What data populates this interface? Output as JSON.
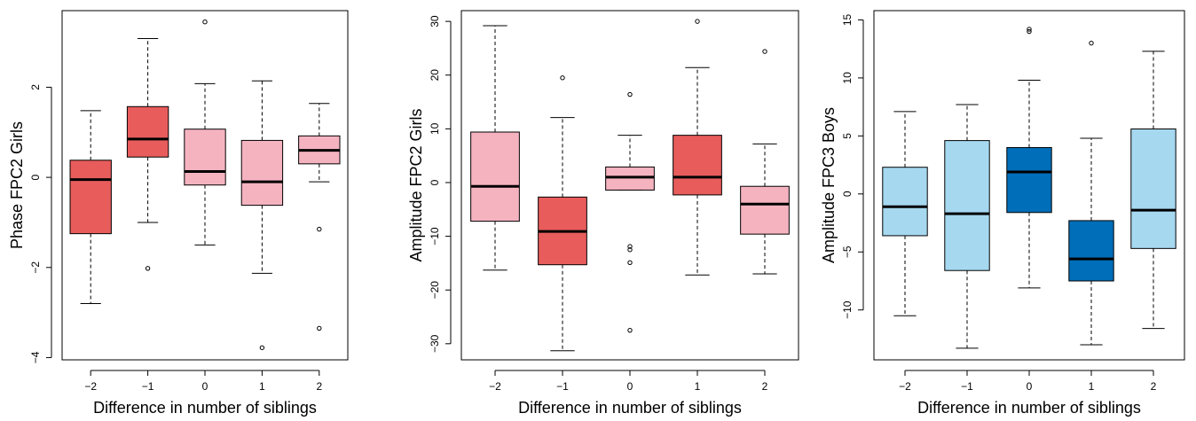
{
  "chart_data": [
    {
      "type": "box",
      "xlabel": "Difference in number of siblings",
      "ylabel": "Phase FPC2 Girls",
      "ylim": [
        -4.05,
        3.7
      ],
      "yticks": [
        -4,
        -2,
        0,
        2
      ],
      "categories": [
        "−2",
        "−1",
        "0",
        "1",
        "2"
      ],
      "colors": [
        "#e85c5c",
        "#e85c5c",
        "#f5b3c0",
        "#f5b3c0",
        "#f5b3c0"
      ],
      "boxes": [
        {
          "category": "−2",
          "whisker_low": -2.8,
          "q1": -1.25,
          "median": -0.05,
          "q3": 0.38,
          "whisker_high": 1.48,
          "outliers": []
        },
        {
          "category": "−1",
          "whisker_low": -1.0,
          "q1": 0.45,
          "median": 0.85,
          "q3": 1.57,
          "whisker_high": 3.08,
          "outliers": [
            -2.02
          ]
        },
        {
          "category": "0",
          "whisker_low": -1.5,
          "q1": -0.17,
          "median": 0.13,
          "q3": 1.07,
          "whisker_high": 2.08,
          "outliers": [
            3.45
          ]
        },
        {
          "category": "1",
          "whisker_low": -2.13,
          "q1": -0.62,
          "median": -0.1,
          "q3": 0.82,
          "whisker_high": 2.14,
          "outliers": [
            -3.78
          ]
        },
        {
          "category": "2",
          "whisker_low": -0.1,
          "q1": 0.3,
          "median": 0.6,
          "q3": 0.92,
          "whisker_high": 1.64,
          "outliers": [
            -1.15,
            -3.35
          ]
        }
      ]
    },
    {
      "type": "box",
      "xlabel": "Difference in number of siblings",
      "ylabel": "Amplitude FPC2 Girls",
      "ylim": [
        -33,
        32
      ],
      "yticks": [
        -30,
        -20,
        -10,
        0,
        10,
        20,
        30
      ],
      "categories": [
        "−2",
        "−1",
        "0",
        "1",
        "2"
      ],
      "colors": [
        "#f5b3c0",
        "#e85c5c",
        "#f5b3c0",
        "#e85c5c",
        "#f5b3c0"
      ],
      "boxes": [
        {
          "category": "−2",
          "whisker_low": -16.3,
          "q1": -7.2,
          "median": -0.7,
          "q3": 9.4,
          "whisker_high": 29.2,
          "outliers": []
        },
        {
          "category": "−1",
          "whisker_low": -31.3,
          "q1": -15.3,
          "median": -9.1,
          "q3": -2.7,
          "whisker_high": 12.1,
          "outliers": [
            19.5
          ]
        },
        {
          "category": "0",
          "whisker_low": -1.4,
          "q1": -1.4,
          "median": 1.0,
          "q3": 2.9,
          "whisker_high": 8.8,
          "outliers": [
            16.4,
            -11.9,
            -12.5,
            -14.9,
            -27.5
          ]
        },
        {
          "category": "1",
          "whisker_low": -17.2,
          "q1": -2.3,
          "median": 1.0,
          "q3": 8.8,
          "whisker_high": 21.4,
          "outliers": [
            30.0
          ]
        },
        {
          "category": "2",
          "whisker_low": -17.0,
          "q1": -9.6,
          "median": -4.0,
          "q3": -0.7,
          "whisker_high": 7.2,
          "outliers": [
            24.4
          ]
        }
      ]
    },
    {
      "type": "box",
      "xlabel": "Difference in number of siblings",
      "ylabel": "Amplitude FPC3 Boys",
      "ylim": [
        -14.3,
        15.8
      ],
      "yticks": [
        -10,
        -5,
        0,
        5,
        10,
        15
      ],
      "categories": [
        "−2",
        "−1",
        "0",
        "1",
        "2"
      ],
      "colors": [
        "#a6d8f0",
        "#a6d8f0",
        "#006eb8",
        "#006eb8",
        "#a6d8f0"
      ],
      "boxes": [
        {
          "category": "−2",
          "whisker_low": -10.5,
          "q1": -3.6,
          "median": -1.1,
          "q3": 2.3,
          "whisker_high": 7.1,
          "outliers": []
        },
        {
          "category": "−1",
          "whisker_low": -13.3,
          "q1": -6.6,
          "median": -1.7,
          "q3": 4.6,
          "whisker_high": 7.7,
          "outliers": []
        },
        {
          "category": "0",
          "whisker_low": -8.1,
          "q1": -1.6,
          "median": 1.9,
          "q3": 4.0,
          "whisker_high": 9.8,
          "outliers": [
            14.2,
            14.0
          ]
        },
        {
          "category": "1",
          "whisker_low": -13.0,
          "q1": -7.5,
          "median": -5.6,
          "q3": -2.3,
          "whisker_high": 4.8,
          "outliers": [
            13.0
          ]
        },
        {
          "category": "2",
          "whisker_low": -11.6,
          "q1": -4.7,
          "median": -1.4,
          "q3": 5.6,
          "whisker_high": 12.3,
          "outliers": []
        }
      ]
    }
  ]
}
